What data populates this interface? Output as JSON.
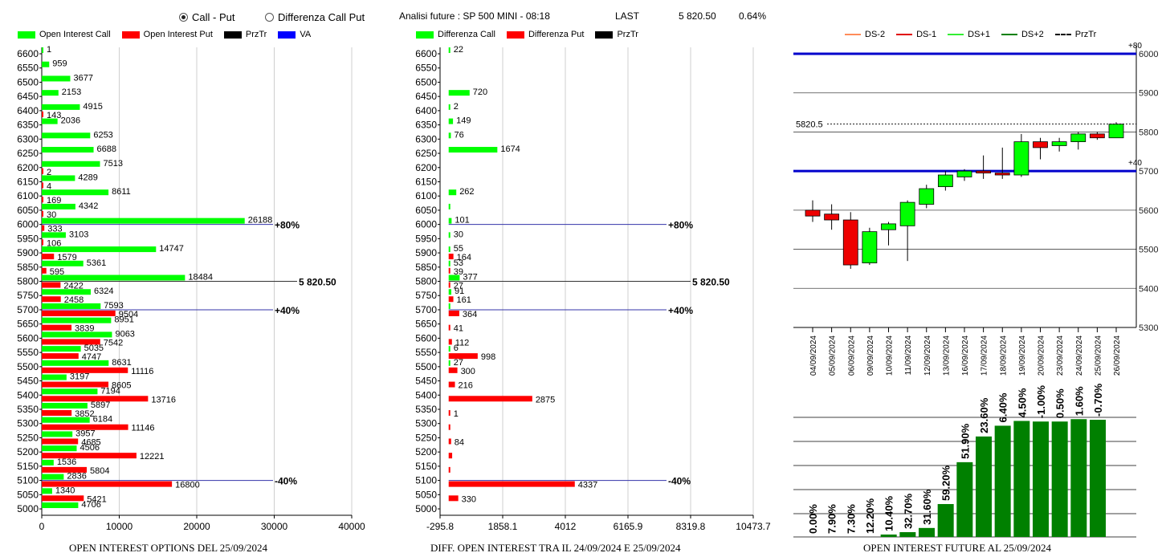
{
  "header": {
    "radio_call_put": "Call - Put",
    "radio_diff": "Differenza Call Put",
    "title": "Analisi future : SP 500 MINI - 08:18",
    "last_label": "LAST",
    "last_value": "5 820.50",
    "last_pct": "0.64%"
  },
  "legend1": [
    {
      "label": "Open Interest Call",
      "color": "#00ff00"
    },
    {
      "label": "Open Interest Put",
      "color": "#ff0000"
    },
    {
      "label": "PrzTr",
      "color": "#000000"
    },
    {
      "label": "VA",
      "color": "#0000ff"
    }
  ],
  "legend2": [
    {
      "label": "Differenza Call",
      "color": "#00ff00"
    },
    {
      "label": "Differenza Put",
      "color": "#ff0000"
    },
    {
      "label": "PrzTr",
      "color": "#000000"
    }
  ],
  "legend3": [
    {
      "label": "DS-2",
      "color": "#ff8c5a"
    },
    {
      "label": "DS-1",
      "color": "#e00000"
    },
    {
      "label": "DS+1",
      "color": "#33ee33"
    },
    {
      "label": "DS+2",
      "color": "#008000"
    },
    {
      "label": "PrzTr",
      "color": "#000000"
    }
  ],
  "footer": {
    "t1": "OPEN INTEREST OPTIONS DEL 25/09/2024",
    "t2": "DIFF. OPEN INTEREST TRA IL 24/09/2024 E 25/09/2024",
    "t3": "OPEN INTEREST FUTURE AL 25/09/2024"
  },
  "chart_data": [
    {
      "type": "bar",
      "orientation": "horizontal",
      "strikes": [
        6600,
        6550,
        6500,
        6450,
        6400,
        6350,
        6300,
        6250,
        6200,
        6150,
        6100,
        6050,
        6000,
        5950,
        5900,
        5850,
        5800,
        5750,
        5700,
        5650,
        5600,
        5550,
        5500,
        5450,
        5400,
        5350,
        5300,
        5250,
        5200,
        5150,
        5100,
        5050,
        5000
      ],
      "series": [
        {
          "name": "Open Interest Call",
          "color": "#00ff00",
          "values": [
            1,
            959,
            3677,
            2153,
            4915,
            2036,
            6253,
            6688,
            7513,
            4289,
            8611,
            4342,
            26188,
            3103,
            14747,
            5361,
            18484,
            6324,
            7593,
            8951,
            9063,
            5035,
            8631,
            3197,
            7194,
            5897,
            6184,
            3957,
            4506,
            1536,
            2836,
            1340,
            4706
          ]
        },
        {
          "name": "Open Interest Put",
          "color": "#ff0000",
          "values": [
            null,
            null,
            null,
            null,
            143,
            null,
            null,
            null,
            2,
            4,
            169,
            30,
            333,
            106,
            1579,
            595,
            2422,
            2458,
            9504,
            3839,
            7542,
            4747,
            11116,
            8605,
            13716,
            3852,
            11146,
            4685,
            12221,
            5804,
            16800,
            5421,
            null
          ]
        }
      ],
      "xticks": [
        "0",
        "10000",
        "20000",
        "30000",
        "40000"
      ],
      "xlim": [
        0,
        40000
      ],
      "ref_lines": [
        {
          "strike": 6000,
          "label": "+80%"
        },
        {
          "strike": 5800,
          "label": "5 820.50"
        },
        {
          "strike": 5700,
          "label": "+40%"
        },
        {
          "strike": 5100,
          "label": "-40%"
        }
      ],
      "title": "OPEN INTEREST OPTIONS DEL 25/09/2024"
    },
    {
      "type": "bar",
      "orientation": "horizontal",
      "strikes": [
        6600,
        6550,
        6500,
        6450,
        6400,
        6350,
        6300,
        6250,
        6200,
        6150,
        6100,
        6050,
        6000,
        5950,
        5900,
        5850,
        5800,
        5750,
        5700,
        5650,
        5600,
        5550,
        5500,
        5450,
        5400,
        5350,
        5300,
        5250,
        5200,
        5150,
        5100,
        5050,
        5000
      ],
      "series": [
        {
          "name": "Differenza Call",
          "color": "#00ff00",
          "values": [
            22,
            null,
            null,
            720,
            2,
            149,
            76,
            1674,
            null,
            null,
            262,
            20,
            101,
            30,
            55,
            53,
            377,
            91,
            25,
            null,
            null,
            6,
            27,
            null,
            null,
            null,
            null,
            null,
            null,
            null,
            null,
            null,
            null
          ]
        },
        {
          "name": "Differenza Put",
          "color": "#ff0000",
          "values": [
            null,
            null,
            null,
            null,
            null,
            null,
            null,
            null,
            null,
            null,
            null,
            null,
            null,
            null,
            164,
            39,
            27,
            161,
            364,
            41,
            112,
            998,
            300,
            216,
            2875,
            1,
            30,
            84,
            120,
            20,
            4337,
            330,
            null
          ]
        }
      ],
      "show_labels_call": [
        true,
        false,
        false,
        true,
        true,
        true,
        true,
        true,
        false,
        false,
        true,
        false,
        true,
        true,
        true,
        true,
        true,
        true,
        false,
        false,
        false,
        true,
        true,
        false,
        false,
        false,
        false,
        false,
        false,
        false,
        false,
        false,
        false
      ],
      "show_labels_put": [
        false,
        false,
        false,
        false,
        false,
        false,
        false,
        false,
        false,
        false,
        false,
        false,
        false,
        false,
        true,
        true,
        true,
        true,
        true,
        true,
        true,
        true,
        true,
        true,
        true,
        true,
        false,
        true,
        false,
        false,
        true,
        true,
        false
      ],
      "xticks": [
        "-295.8",
        "1858.1",
        "4012",
        "6165.9",
        "8319.8",
        "10473.7"
      ],
      "xlim": [
        -295.8,
        10473.7
      ],
      "ref_lines": [
        {
          "strike": 6000,
          "label": "+80%"
        },
        {
          "strike": 5800,
          "label": "5 820.50"
        },
        {
          "strike": 5700,
          "label": "+40%"
        },
        {
          "strike": 5100,
          "label": "-40%"
        }
      ],
      "title": "DIFF. OPEN INTEREST TRA IL 24/09/2024 E 25/09/2024"
    },
    {
      "type": "candlestick",
      "dates": [
        "04/09/2024",
        "05/09/2024",
        "06/09/2024",
        "09/09/2024",
        "10/09/2024",
        "11/09/2024",
        "12/09/2024",
        "13/09/2024",
        "16/09/2024",
        "17/09/2024",
        "18/09/2024",
        "19/09/2024",
        "20/09/2024",
        "23/09/2024",
        "24/09/2024",
        "25/09/2024",
        "26/09/2024"
      ],
      "candles": [
        {
          "o": 5600,
          "h": 5625,
          "l": 5570,
          "c": 5585
        },
        {
          "o": 5590,
          "h": 5615,
          "l": 5550,
          "c": 5575
        },
        {
          "o": 5575,
          "h": 5595,
          "l": 5450,
          "c": 5460
        },
        {
          "o": 5465,
          "h": 5555,
          "l": 5460,
          "c": 5545
        },
        {
          "o": 5550,
          "h": 5570,
          "l": 5510,
          "c": 5565
        },
        {
          "o": 5560,
          "h": 5625,
          "l": 5470,
          "c": 5620
        },
        {
          "o": 5615,
          "h": 5665,
          "l": 5605,
          "c": 5655
        },
        {
          "o": 5660,
          "h": 5700,
          "l": 5650,
          "c": 5690
        },
        {
          "o": 5685,
          "h": 5705,
          "l": 5675,
          "c": 5700
        },
        {
          "o": 5700,
          "h": 5740,
          "l": 5680,
          "c": 5695
        },
        {
          "o": 5695,
          "h": 5760,
          "l": 5680,
          "c": 5690
        },
        {
          "o": 5690,
          "h": 5795,
          "l": 5685,
          "c": 5775
        },
        {
          "o": 5775,
          "h": 5785,
          "l": 5730,
          "c": 5760
        },
        {
          "o": 5765,
          "h": 5785,
          "l": 5750,
          "c": 5775
        },
        {
          "o": 5775,
          "h": 5800,
          "l": 5755,
          "c": 5795
        },
        {
          "o": 5795,
          "h": 5800,
          "l": 5780,
          "c": 5785
        },
        {
          "o": 5785,
          "h": 5825,
          "l": 5785,
          "c": 5820
        }
      ],
      "yticks": [
        "5300",
        "5400",
        "5500",
        "5600",
        "5700",
        "5800",
        "5900",
        "6000"
      ],
      "ylim": [
        5300,
        6000
      ],
      "last_line": {
        "value": 5820.5,
        "label": "5820.5"
      },
      "blue_lines": [
        {
          "value": 6000,
          "label": "+80"
        },
        {
          "value": 5700,
          "label": "+40"
        }
      ]
    },
    {
      "type": "bar",
      "categories": [
        "04/09/2024",
        "05/09/2024",
        "06/09/2024",
        "09/09/2024",
        "10/09/2024",
        "11/09/2024",
        "12/09/2024",
        "13/09/2024",
        "16/09/2024",
        "17/09/2024",
        "18/09/2024",
        "19/09/2024",
        "20/09/2024",
        "23/09/2024",
        "24/09/2024",
        "25/09/2024"
      ],
      "labels": [
        "0.00%",
        "7.90%",
        "7.30%",
        "12.20%",
        "10.40%",
        "32.70%",
        "31.60%",
        "59.20%",
        "51.90%",
        "23.60%",
        "6.40%",
        "4.50%",
        "-1.00%",
        "0.50%",
        "1.60%",
        "-0.70%"
      ],
      "values": [
        0,
        0,
        0,
        0,
        4,
        8,
        15,
        55,
        125,
        168,
        186,
        194,
        193,
        193,
        197,
        196
      ],
      "color": "#008000",
      "title": "OPEN INTEREST FUTURE AL 25/09/2024"
    }
  ]
}
